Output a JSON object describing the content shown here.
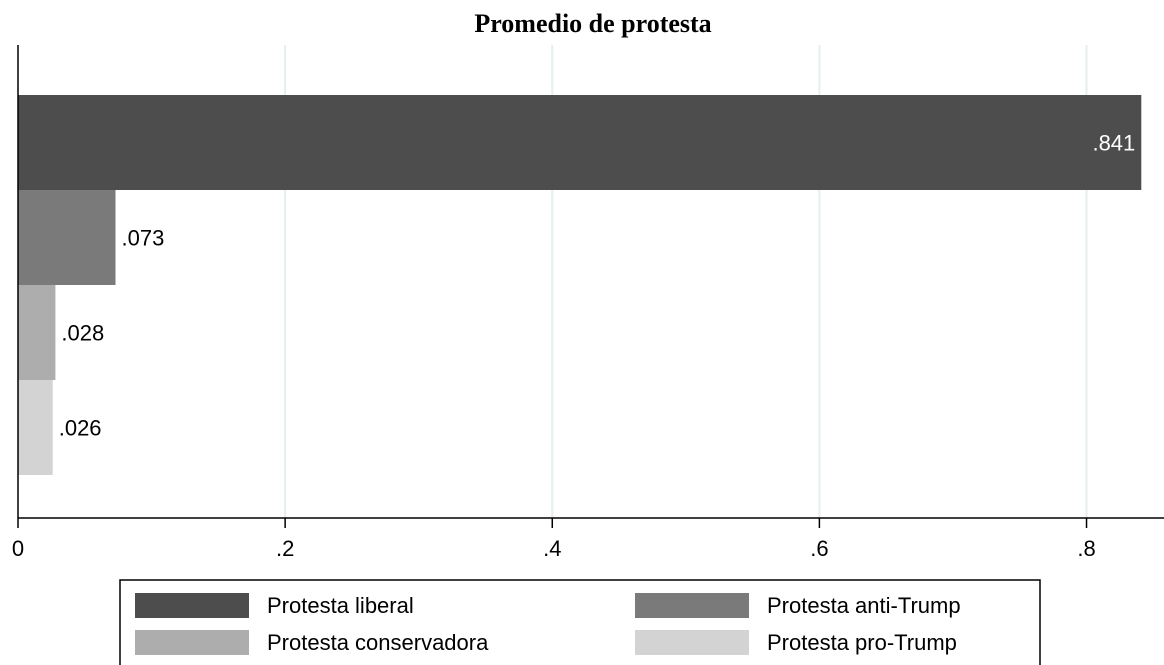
{
  "chart_data": {
    "type": "bar",
    "orientation": "horizontal",
    "title": "Promedio de protesta",
    "series": [
      {
        "name": "Protesta liberal",
        "color": "#4d4d4d",
        "values": [
          0.841
        ],
        "value_labels": [
          ".841"
        ]
      },
      {
        "name": "Protesta anti-Trump",
        "color": "#7a7a7a",
        "values": [
          0.073
        ],
        "value_labels": [
          ".073"
        ]
      },
      {
        "name": "Protesta conservadora",
        "color": "#adadad",
        "values": [
          0.028
        ],
        "value_labels": [
          ".028"
        ]
      },
      {
        "name": "Protesta pro-Trump",
        "color": "#d3d3d3",
        "values": [
          0.026
        ],
        "value_labels": [
          ".026"
        ]
      }
    ],
    "xlim": [
      0,
      0.858
    ],
    "xticks": [
      0,
      {
        "value": 0.2,
        "label": ".2"
      },
      {
        "value": 0.4,
        "label": ".4"
      },
      {
        "value": 0.6,
        "label": ".6"
      },
      {
        "value": 0.8,
        "label": ".8"
      }
    ],
    "grid": true,
    "legend": "bottom"
  }
}
